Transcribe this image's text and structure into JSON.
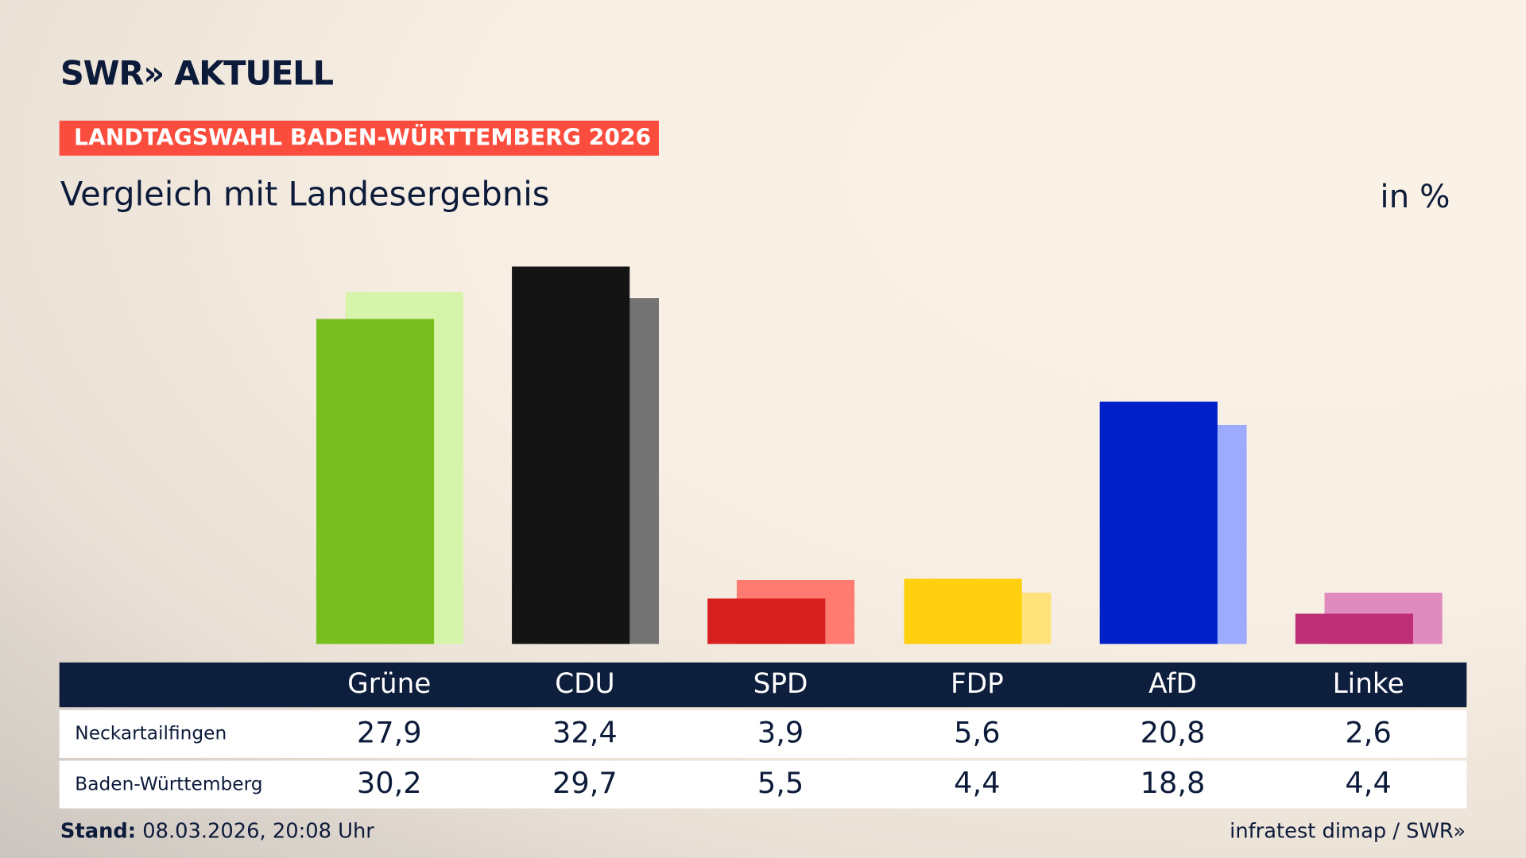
{
  "header": {
    "logo": "SWR» AKTUELL",
    "tag": "LANDTAGSWAHL BADEN-WÜRTTEMBERG 2026",
    "subtitle": "Vergleich mit Landesergebnis",
    "unit": "in %"
  },
  "chart_data": {
    "type": "bar",
    "categories": [
      "Grüne",
      "CDU",
      "SPD",
      "FDP",
      "AfD",
      "Linke"
    ],
    "series": [
      {
        "name": "Neckartailfingen",
        "values": [
          27.9,
          32.4,
          3.9,
          5.6,
          20.8,
          2.6
        ],
        "colors": [
          "#78be1e",
          "#141414",
          "#d6201f",
          "#ffd00f",
          "#0021c8",
          "#be3075"
        ]
      },
      {
        "name": "Baden-Württemberg",
        "values": [
          30.2,
          29.7,
          5.5,
          4.4,
          18.8,
          4.4
        ],
        "colors": [
          "#d7f5aa",
          "#737373",
          "#ff7a70",
          "#ffe27a",
          "#9dabff",
          "#e08bbd"
        ]
      }
    ],
    "display_values": [
      [
        "27,9",
        "32,4",
        "3,9",
        "5,6",
        "20,8",
        "2,6"
      ],
      [
        "30,2",
        "29,7",
        "5,5",
        "4,4",
        "18,8",
        "4,4"
      ]
    ],
    "ylim": [
      0,
      32.4
    ],
    "grid": false
  },
  "footer": {
    "stand_label": "Stand:",
    "stand_value": "08.03.2026, 20:08 Uhr",
    "source": "infratest dimap / SWR»"
  }
}
